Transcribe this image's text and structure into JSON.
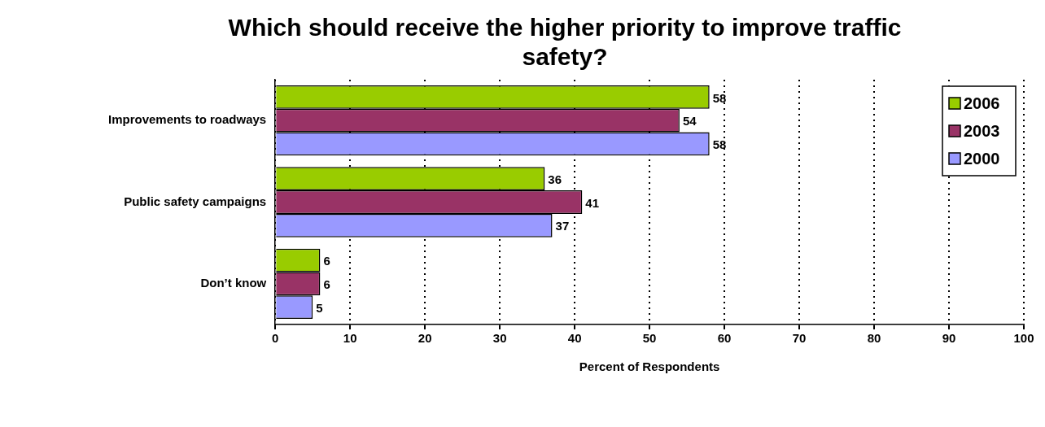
{
  "chart_data": {
    "type": "bar",
    "orientation": "horizontal",
    "title": "Which should receive the higher priority to improve traffic safety?",
    "xlabel": "Percent of Respondents",
    "categories": [
      "Improvements to roadways",
      "Public safety campaigns",
      "Don’t know"
    ],
    "series": [
      {
        "name": "2006",
        "color": "#99cc00",
        "values": [
          58,
          36,
          6
        ]
      },
      {
        "name": "2003",
        "color": "#993366",
        "values": [
          54,
          41,
          6
        ]
      },
      {
        "name": "2000",
        "color": "#9999ff",
        "values": [
          58,
          37,
          5
        ]
      }
    ],
    "xlim": [
      0,
      100
    ],
    "xticks": [
      0,
      10,
      20,
      30,
      40,
      50,
      60,
      70,
      80,
      90,
      100
    ],
    "grid": "x",
    "legend": "top right",
    "data_labels": true
  }
}
